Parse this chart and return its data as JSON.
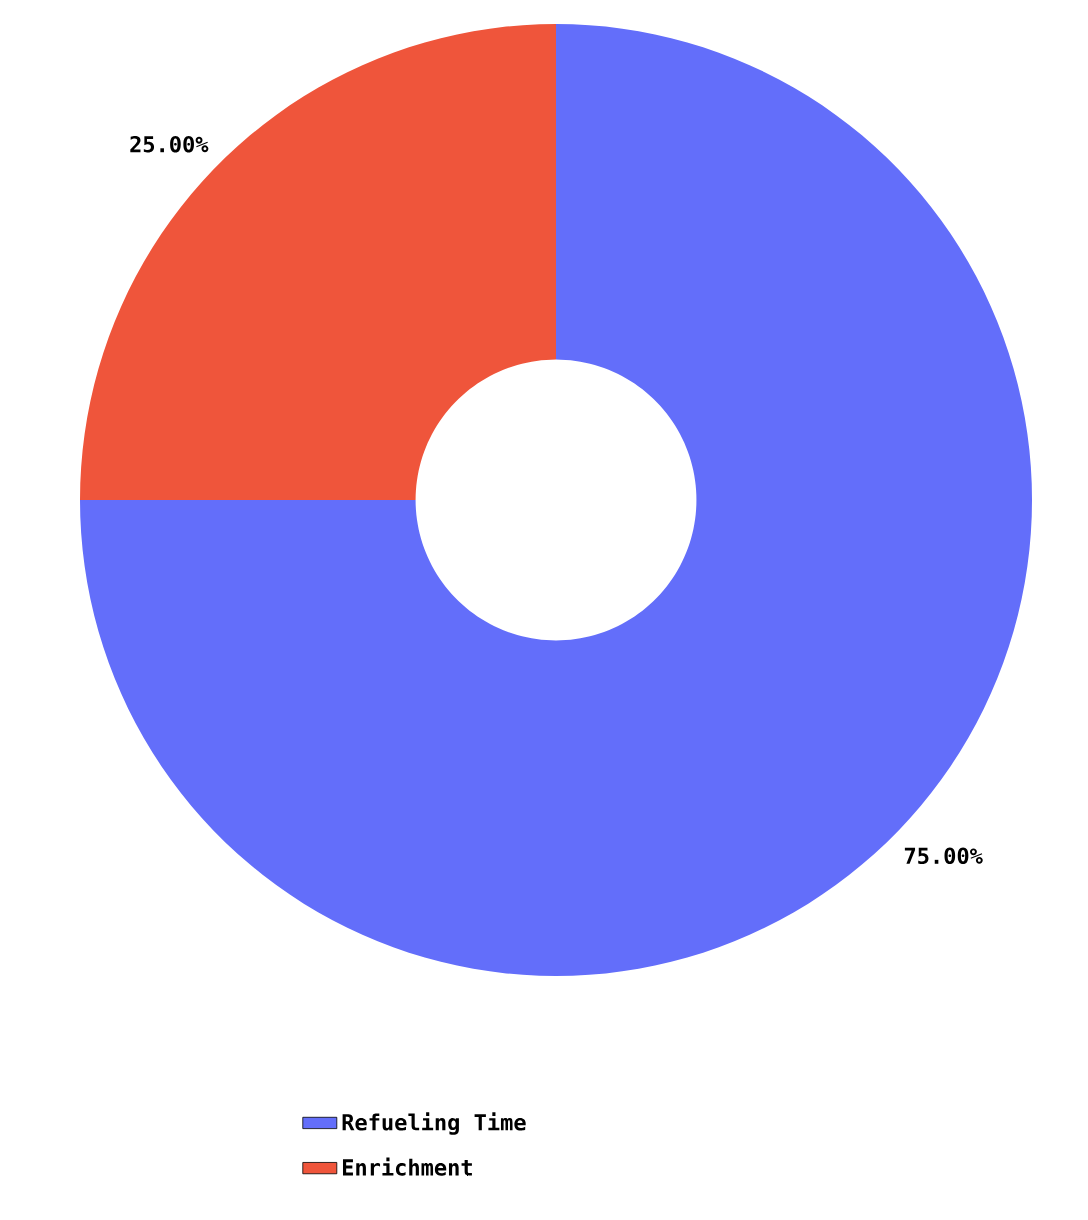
{
  "chart_data": {
    "type": "donut",
    "categories": [
      "Refueling Time",
      "Enrichment"
    ],
    "values": [
      75,
      25
    ],
    "colors": [
      "#636efa",
      "#ef553b"
    ],
    "value_labels": [
      "75.00%",
      "25.00%"
    ],
    "legend": "bottom"
  }
}
